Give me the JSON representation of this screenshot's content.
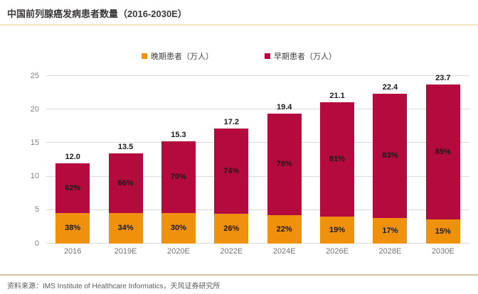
{
  "title": "中国前列腺癌发病患者数量（2016-2030E）",
  "footer": {
    "source_text": "资料来源：IMS Institute of Healthcare Informatics，天风证券研究所"
  },
  "colors": {
    "late_stage_orange": "#F0910B",
    "early_stage_crimson": "#B40A3E",
    "gridline": "#D9D9D9",
    "top_rule": "#F7E4C2",
    "bottom_rule": "#DCC09A"
  },
  "chart_data": {
    "type": "bar",
    "stacked": true,
    "title": "中国前列腺癌发病患者数量（2016-2030E）",
    "categories": [
      "2016",
      "2019E",
      "2020E",
      "2022E",
      "2024E",
      "2026E",
      "2028E",
      "2030E"
    ],
    "totals": [
      12.0,
      13.5,
      15.3,
      17.2,
      19.4,
      21.1,
      22.4,
      23.7
    ],
    "total_labels": [
      "12.0",
      "13.5",
      "15.3",
      "17.2",
      "19.4",
      "21.1",
      "22.4",
      "23.7"
    ],
    "series": [
      {
        "name": "晚期患者（万人）",
        "color": "#F0910B",
        "position": "bottom",
        "percents": [
          38,
          34,
          30,
          26,
          22,
          19,
          17,
          15
        ]
      },
      {
        "name": "早期患者（万人）",
        "color": "#B40A3E",
        "position": "top",
        "percents": [
          62,
          66,
          70,
          74,
          78,
          81,
          83,
          85
        ]
      }
    ],
    "unit": "万人",
    "ylim": [
      0,
      25
    ],
    "yticks": [
      0,
      5,
      10,
      15,
      20,
      25
    ],
    "grid": true,
    "legend_position": "top-center"
  }
}
